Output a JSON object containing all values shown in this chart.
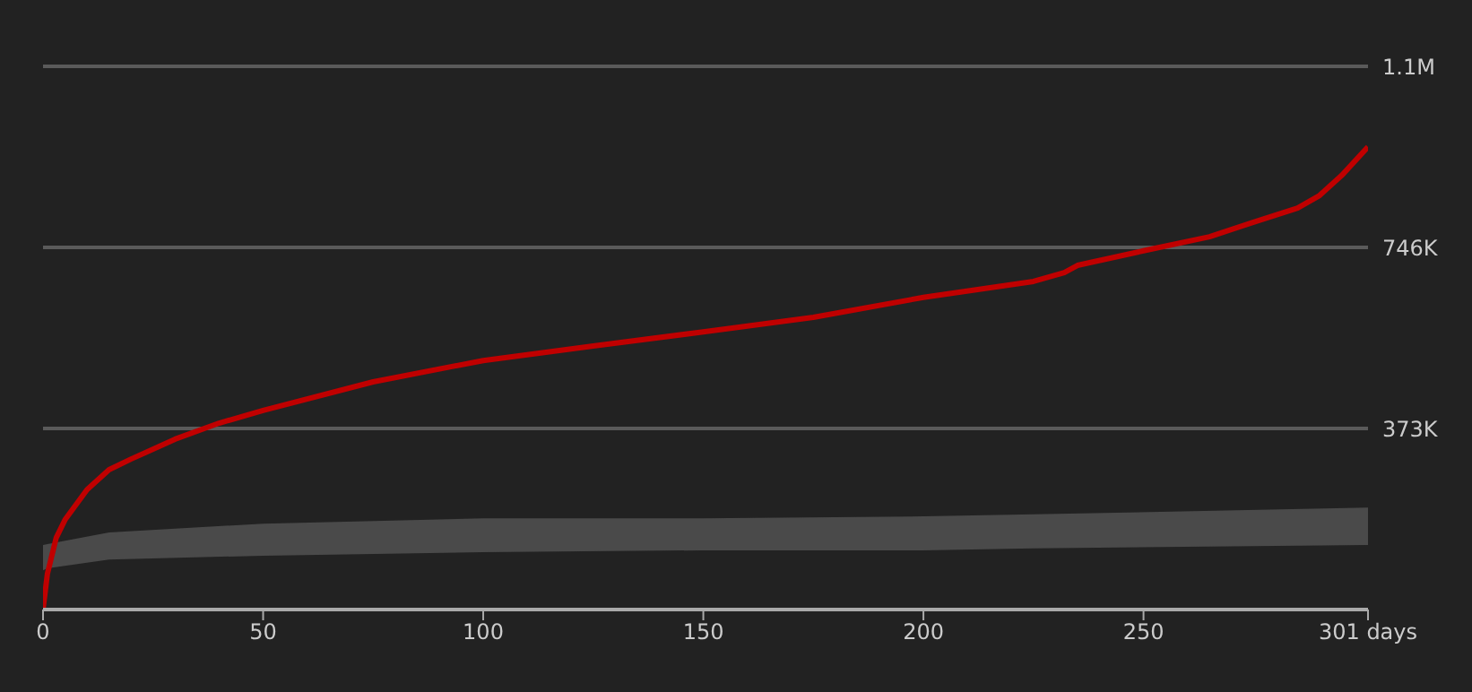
{
  "chart_data": {
    "type": "line",
    "xlim": [
      0,
      301
    ],
    "xticks": [
      0,
      50,
      100,
      150,
      200,
      250,
      {
        "value": 301,
        "label": "301 days"
      }
    ],
    "ylim": [
      0,
      1119000
    ],
    "yticks": [
      {
        "value": 373000,
        "label": "373K"
      },
      {
        "value": 746000,
        "label": "746K"
      },
      {
        "value": 1119000,
        "label": "1.1M"
      }
    ],
    "grid": "y",
    "marker": "none",
    "line_style": "solid",
    "series": [
      {
        "type": "area",
        "color": "#4a4a4a",
        "x": [
          0,
          1,
          15,
          50,
          100,
          150,
          200,
          225,
          301
        ],
        "values": [
          null,
          null,
          null,
          null,
          null,
          null,
          null,
          null,
          null
        ],
        "lower": [
          81000,
          85000,
          103000,
          111000,
          118000,
          122000,
          122000,
          126000,
          133000
        ],
        "upper": [
          133000,
          135000,
          159000,
          177000,
          188000,
          188000,
          192000,
          196000,
          210000
        ]
      },
      {
        "color": "#c00000",
        "x": [
          0,
          1,
          3,
          5,
          10,
          15,
          20,
          30,
          40,
          50,
          75,
          100,
          125,
          150,
          175,
          200,
          225,
          232,
          235,
          250,
          265,
          275,
          285,
          290,
          295,
          301
        ],
        "values": [
          0,
          74000,
          148000,
          185000,
          247000,
          288000,
          310000,
          351000,
          384000,
          410000,
          469000,
          513000,
          543000,
          572000,
          602000,
          643000,
          676000,
          694000,
          709000,
          739000,
          768000,
          798000,
          827000,
          853000,
          894000,
          953000
        ]
      }
    ]
  }
}
